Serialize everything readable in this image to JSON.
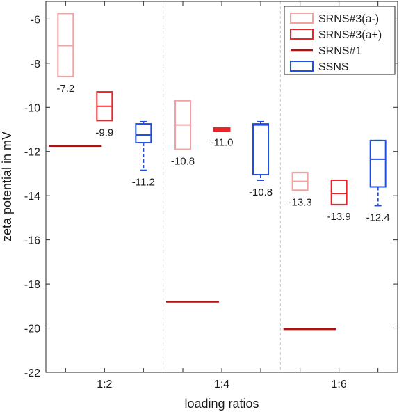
{
  "chart_data": {
    "type": "box",
    "title": "",
    "xlabel": "loading ratios",
    "ylabel": "zeta potential in mV",
    "categories": [
      "1:2",
      "1:4",
      "1:6"
    ],
    "ylim": [
      -22,
      -5.2
    ],
    "yticks": [
      -6,
      -8,
      -10,
      -12,
      -14,
      -16,
      -18,
      -20,
      -22
    ],
    "grid": "vertical dashed separators between groups",
    "legend_position": "top-right",
    "series": [
      {
        "name": "SRNS#3(a-)",
        "color": "#f2a0a0",
        "kind": "box",
        "boxes": [
          {
            "category": "1:2",
            "q1": -8.6,
            "median": -7.2,
            "q3": -5.75,
            "whisker_low": null,
            "whisker_high": null,
            "label": "-7.2"
          },
          {
            "category": "1:4",
            "q1": -11.9,
            "median": -10.8,
            "q3": -9.7,
            "whisker_low": null,
            "whisker_high": null,
            "label": "-10.8"
          },
          {
            "category": "1:6",
            "q1": -13.75,
            "median": -13.35,
            "q3": -12.95,
            "whisker_low": null,
            "whisker_high": null,
            "label": "-13.3"
          }
        ]
      },
      {
        "name": "SRNS#3(a+)",
        "color": "#e8252a",
        "kind": "box",
        "boxes": [
          {
            "category": "1:2",
            "q1": -10.6,
            "median": -9.95,
            "q3": -9.3,
            "whisker_low": null,
            "whisker_high": null,
            "label": "-9.9"
          },
          {
            "category": "1:4",
            "q1": -11.05,
            "median": -11.0,
            "q3": -10.95,
            "whisker_low": null,
            "whisker_high": null,
            "label": "-11.0"
          },
          {
            "category": "1:6",
            "q1": -14.4,
            "median": -13.9,
            "q3": -13.3,
            "whisker_low": null,
            "whisker_high": null,
            "label": "-13.9"
          }
        ]
      },
      {
        "name": "SRNS#1",
        "color": "#b01010",
        "kind": "line",
        "values": [
          -11.75,
          -18.8,
          -20.05
        ]
      },
      {
        "name": "SSNS",
        "color": "#1f4fe0",
        "kind": "box",
        "boxes": [
          {
            "category": "1:2",
            "q1": -11.6,
            "median": -11.25,
            "q3": -10.75,
            "whisker_low": -12.85,
            "whisker_high": -10.65,
            "label": "-11.2"
          },
          {
            "category": "1:4",
            "q1": -13.05,
            "median": -10.8,
            "q3": -10.75,
            "whisker_low": -13.3,
            "whisker_high": -10.65,
            "label": "-10.8"
          },
          {
            "category": "1:6",
            "q1": -13.6,
            "median": -12.35,
            "q3": -11.5,
            "whisker_low": -14.45,
            "whisker_high": -11.5,
            "label": "-12.4"
          }
        ]
      }
    ]
  }
}
